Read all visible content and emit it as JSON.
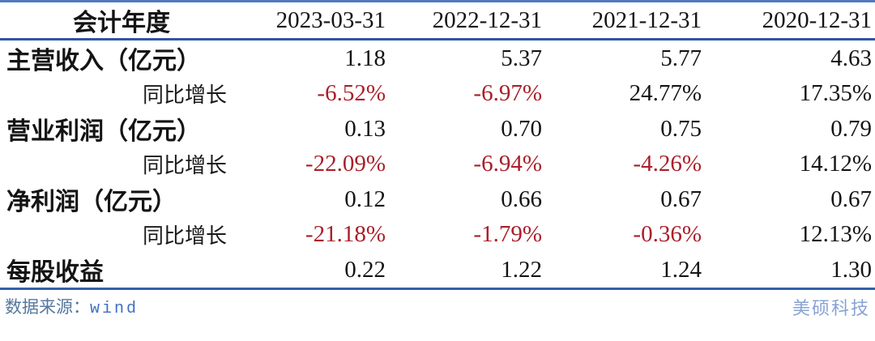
{
  "chart_data": {
    "type": "table",
    "columns": [
      "会计年度",
      "2023-03-31",
      "2022-12-31",
      "2021-12-31",
      "2020-12-31"
    ],
    "rows": [
      {
        "label": "主营收入（亿元）",
        "style": "metric",
        "values": [
          "1.18",
          "5.37",
          "5.77",
          "4.63"
        ]
      },
      {
        "label": "同比增长",
        "style": "growth",
        "values": [
          "-6.52%",
          "-6.97%",
          "24.77%",
          "17.35%"
        ]
      },
      {
        "label": "营业利润（亿元）",
        "style": "metric",
        "values": [
          "0.13",
          "0.70",
          "0.75",
          "0.79"
        ]
      },
      {
        "label": "同比增长",
        "style": "growth",
        "values": [
          "-22.09%",
          "-6.94%",
          "-4.26%",
          "14.12%"
        ]
      },
      {
        "label": "净利润（亿元）",
        "style": "metric",
        "values": [
          "0.12",
          "0.66",
          "0.67",
          "0.67"
        ]
      },
      {
        "label": "同比增长",
        "style": "growth",
        "values": [
          "-21.18%",
          "-1.79%",
          "-0.36%",
          "12.13%"
        ]
      },
      {
        "label": "每股收益",
        "style": "metric",
        "values": [
          "0.22",
          "1.22",
          "1.24",
          "1.30"
        ]
      }
    ],
    "layout": {
      "legend": "none",
      "grid": "horizontal-rules-only",
      "negative_values_highlighted": true
    }
  },
  "footer": {
    "source_label": "数据来源：",
    "source_value": "wind",
    "brand": "美硕科技"
  },
  "colors": {
    "negative_value": "#aa1f29",
    "rule_blue_top": "#4f7abc",
    "rule_blue": "#2e589d",
    "text": "#141414",
    "source_label": "#56789f",
    "source_value": "#3f6fc1",
    "brand": "#87a3d4"
  }
}
